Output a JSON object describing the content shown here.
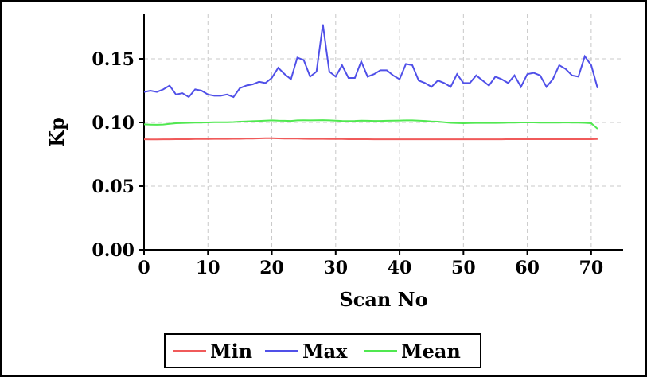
{
  "chart_data": {
    "type": "line",
    "xlabel": "Scan No",
    "ylabel": "Kp",
    "xlim": [
      0,
      75
    ],
    "ylim": [
      0,
      0.185
    ],
    "xticks": [
      0,
      10,
      20,
      30,
      40,
      50,
      60,
      70
    ],
    "xtick_labels": [
      "0",
      "10",
      "20",
      "30",
      "40",
      "50",
      "60",
      "70"
    ],
    "yticks": [
      0.0,
      0.05,
      0.1,
      0.15
    ],
    "ytick_labels": [
      "0.00",
      "0.05",
      "0.10",
      "0.15"
    ],
    "grid": true,
    "legend_position": "bottom-center",
    "x": [
      0,
      1,
      2,
      3,
      4,
      5,
      6,
      7,
      8,
      9,
      10,
      11,
      12,
      13,
      14,
      15,
      16,
      17,
      18,
      19,
      20,
      21,
      22,
      23,
      24,
      25,
      26,
      27,
      28,
      29,
      30,
      31,
      32,
      33,
      34,
      35,
      36,
      37,
      38,
      39,
      40,
      41,
      42,
      43,
      44,
      45,
      46,
      47,
      48,
      49,
      50,
      51,
      52,
      53,
      54,
      55,
      56,
      57,
      58,
      59,
      60,
      61,
      62,
      63,
      64,
      65,
      66,
      67,
      68,
      69,
      70,
      71
    ],
    "series": [
      {
        "name": "Min",
        "color": "#f05a5a",
        "values": [
          0.0868,
          0.0867,
          0.0867,
          0.0868,
          0.0868,
          0.0869,
          0.0869,
          0.0869,
          0.087,
          0.087,
          0.087,
          0.0871,
          0.0871,
          0.0871,
          0.0872,
          0.0872,
          0.0873,
          0.0874,
          0.0875,
          0.0876,
          0.0877,
          0.0875,
          0.0874,
          0.0874,
          0.0873,
          0.0872,
          0.0871,
          0.0871,
          0.0871,
          0.087,
          0.087,
          0.087,
          0.0869,
          0.0869,
          0.0869,
          0.0869,
          0.0868,
          0.0868,
          0.0868,
          0.0868,
          0.0868,
          0.0868,
          0.0868,
          0.0868,
          0.0868,
          0.0868,
          0.0868,
          0.0868,
          0.0868,
          0.0868,
          0.0868,
          0.0868,
          0.0868,
          0.0868,
          0.0868,
          0.0868,
          0.0868,
          0.0869,
          0.0869,
          0.0869,
          0.0869,
          0.0869,
          0.0869,
          0.0869,
          0.0869,
          0.0869,
          0.0869,
          0.0869,
          0.0869,
          0.0869,
          0.0869,
          0.087
        ]
      },
      {
        "name": "Max",
        "color": "#5050e8",
        "values": [
          0.124,
          0.125,
          0.124,
          0.126,
          0.129,
          0.122,
          0.123,
          0.12,
          0.126,
          0.125,
          0.122,
          0.121,
          0.121,
          0.122,
          0.12,
          0.127,
          0.129,
          0.13,
          0.132,
          0.131,
          0.135,
          0.143,
          0.138,
          0.134,
          0.151,
          0.149,
          0.136,
          0.14,
          0.177,
          0.14,
          0.136,
          0.145,
          0.135,
          0.135,
          0.148,
          0.136,
          0.138,
          0.141,
          0.141,
          0.137,
          0.134,
          0.146,
          0.145,
          0.133,
          0.131,
          0.128,
          0.133,
          0.131,
          0.128,
          0.138,
          0.131,
          0.131,
          0.137,
          0.133,
          0.129,
          0.136,
          0.134,
          0.131,
          0.137,
          0.128,
          0.138,
          0.139,
          0.137,
          0.128,
          0.134,
          0.145,
          0.142,
          0.137,
          0.136,
          0.152,
          0.145,
          0.127
        ]
      },
      {
        "name": "Mean",
        "color": "#50e850",
        "values": [
          0.0985,
          0.0983,
          0.0982,
          0.0984,
          0.0989,
          0.0994,
          0.0995,
          0.0997,
          0.0998,
          0.0999,
          0.1,
          0.1001,
          0.1001,
          0.1001,
          0.1003,
          0.1006,
          0.1008,
          0.101,
          0.1012,
          0.1014,
          0.1016,
          0.1014,
          0.1013,
          0.1012,
          0.1016,
          0.1017,
          0.1016,
          0.1017,
          0.1018,
          0.1016,
          0.1014,
          0.1012,
          0.1011,
          0.1012,
          0.1014,
          0.1013,
          0.1012,
          0.1012,
          0.1013,
          0.1014,
          0.1015,
          0.1016,
          0.1016,
          0.1014,
          0.1012,
          0.1008,
          0.1006,
          0.1002,
          0.0997,
          0.0995,
          0.0994,
          0.0995,
          0.0996,
          0.0996,
          0.0996,
          0.0996,
          0.0997,
          0.0998,
          0.0999,
          0.1,
          0.1,
          0.1,
          0.0999,
          0.0998,
          0.0998,
          0.0999,
          0.1,
          0.0999,
          0.0998,
          0.0997,
          0.0994,
          0.095
        ]
      }
    ]
  }
}
